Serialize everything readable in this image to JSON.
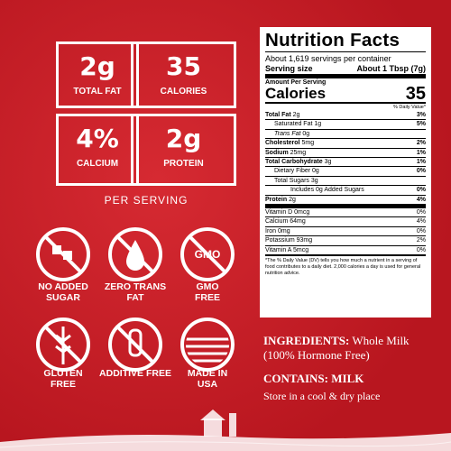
{
  "stats": [
    {
      "value": "2g",
      "label": "TOTAL FAT"
    },
    {
      "value": "35",
      "label": "CALORIES"
    },
    {
      "value": "4%",
      "label": "CALCIUM"
    },
    {
      "value": "2g",
      "label": "PROTEIN"
    }
  ],
  "per_serving": "PER SERVING",
  "badges": [
    {
      "label": "NO ADDED SUGAR"
    },
    {
      "label": "ZERO TRANS FAT"
    },
    {
      "label": "GMO FREE",
      "icon_text": "GMO"
    },
    {
      "label": "GLUTEN FREE"
    },
    {
      "label": "ADDITIVE FREE"
    },
    {
      "label": "MADE IN USA"
    }
  ],
  "nutrition": {
    "title": "Nutrition Facts",
    "servings": "About 1,619 servings per container",
    "serving_size_label": "Serving size",
    "serving_size": "About 1 Tbsp (7g)",
    "amount_per_serving": "Amount Per Serving",
    "calories_label": "Calories",
    "calories": "35",
    "dv_header": "% Daily Value*",
    "rows": [
      [
        "Total Fat",
        "2g",
        "3%"
      ],
      [
        "Saturated Fat",
        "1g",
        "5%"
      ],
      [
        "Trans Fat",
        "0g",
        ""
      ],
      [
        "Cholesterol",
        "5mg",
        "2%"
      ],
      [
        "Sodium",
        "25mg",
        "1%"
      ],
      [
        "Total Carbohydrate",
        "3g",
        "1%"
      ],
      [
        "Dietary Fiber",
        "0g",
        "0%"
      ],
      [
        "Total Sugars",
        "3g",
        ""
      ],
      [
        "Includes 0g Added Sugars",
        "",
        "0%"
      ],
      [
        "Protein",
        "2g",
        "4%"
      ]
    ],
    "vitamins": [
      [
        "Vitamin D 0mcg",
        "0%"
      ],
      [
        "Calcium 64mg",
        "4%"
      ],
      [
        "Iron 0mg",
        "0%"
      ],
      [
        "Potassium 93mg",
        "2%"
      ],
      [
        "Vitamin A 5mcg",
        "0%"
      ]
    ],
    "footnote": "*The % Daily Value (DV) tells you how much a nutrient in a serving of food contributes to a daily diet. 2,000 calories a day is used for general nutrition advice."
  },
  "ingredients_label": "INGREDIENTS:",
  "ingredients": "Whole Milk (100% Hormone Free)",
  "contains_label": "CONTAINS:",
  "contains": "MILK",
  "storage": "Store in a cool & dry place"
}
